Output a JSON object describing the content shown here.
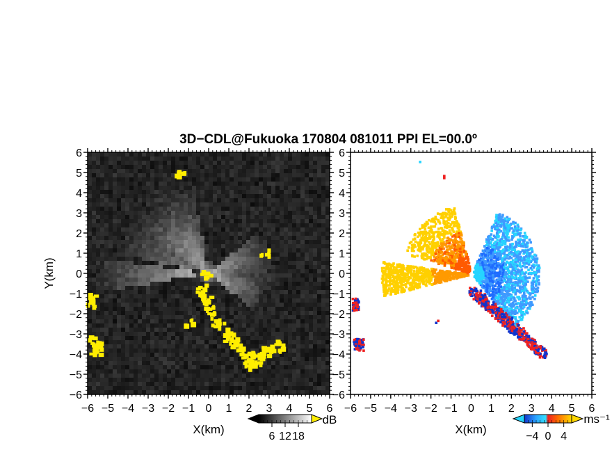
{
  "title": "3D−CDL@Fukuoka 170804 081011 PPI EL=00.0º",
  "colors": {
    "highlight": "#ffee00",
    "background_dark": "#1e1e1e",
    "positive_velocity": [
      "#ffd000",
      "#ff9a00",
      "#ff5a00",
      "#ee2222"
    ],
    "negative_velocity": [
      "#1133cc",
      "#1e6cff",
      "#3f9aff",
      "#26d4ff"
    ]
  },
  "chart_data": [
    {
      "type": "heatmap",
      "panel": "left",
      "quantity": "reflectivity",
      "xlabel": "X(km)",
      "ylabel": "Y(km)",
      "xlim": [
        -6,
        6
      ],
      "ylim": [
        -6,
        6
      ],
      "x_ticks": [
        "−6",
        "−5",
        "−4",
        "−3",
        "−2",
        "−1",
        "0",
        "1",
        "2",
        "3",
        "4",
        "5",
        "6"
      ],
      "y_ticks": [
        "6",
        "5",
        "4",
        "3",
        "2",
        "1",
        "0",
        "−1",
        "−2",
        "−3",
        "−4",
        "−5",
        "−6"
      ],
      "colorbar": {
        "unit": "dB",
        "ticks": [
          "6",
          "12",
          "18"
        ],
        "range": [
          0,
          24
        ]
      },
      "highlight_cells_km": [
        [
          -0.4,
          -0.7
        ],
        [
          -0.3,
          -1.0
        ],
        [
          -0.2,
          -1.3
        ],
        [
          -0.1,
          -1.5
        ],
        [
          0.0,
          -1.8
        ],
        [
          0.2,
          -2.1
        ],
        [
          0.3,
          -2.4
        ],
        [
          0.5,
          -2.6
        ],
        [
          0.7,
          -2.9
        ],
        [
          0.9,
          -3.1
        ],
        [
          1.1,
          -3.3
        ],
        [
          1.3,
          -3.5
        ],
        [
          1.5,
          -3.7
        ],
        [
          1.7,
          -3.9
        ],
        [
          1.8,
          -4.3
        ],
        [
          1.9,
          -4.5
        ],
        [
          2.1,
          -4.0
        ],
        [
          2.4,
          -4.1
        ],
        [
          2.6,
          -3.9
        ],
        [
          2.8,
          -3.8
        ],
        [
          3.0,
          -3.6
        ],
        [
          3.2,
          -3.5
        ],
        [
          3.4,
          -3.6
        ],
        [
          2.3,
          -4.4
        ],
        [
          -5.9,
          -1.2
        ],
        [
          -5.9,
          -1.4
        ],
        [
          -5.8,
          -3.3
        ],
        [
          -5.6,
          -3.5
        ],
        [
          -5.5,
          -3.6
        ],
        [
          -5.7,
          -3.7
        ],
        [
          -1.5,
          5.1
        ],
        [
          -1.0,
          -2.3
        ],
        [
          -0.2,
          0.0
        ],
        [
          2.7,
          1.1
        ]
      ]
    },
    {
      "type": "heatmap",
      "panel": "right",
      "quantity": "Doppler velocity",
      "xlabel": "X(km)",
      "xlim": [
        -6,
        6
      ],
      "ylim": [
        -6,
        6
      ],
      "x_ticks": [
        "−6",
        "−5",
        "−4",
        "−3",
        "−2",
        "−1",
        "0",
        "1",
        "2",
        "3",
        "4",
        "5",
        "6"
      ],
      "y_ticks": [
        "6",
        "5",
        "4",
        "3",
        "2",
        "1",
        "0",
        "−1",
        "−2",
        "−3",
        "−4",
        "−5",
        "−6"
      ],
      "colorbar": {
        "unit": "ms⁻¹",
        "ticks": [
          "−4",
          "0",
          "4"
        ],
        "range": [
          -6,
          6
        ]
      },
      "features": [
        {
          "region": "west sector X=-4.5..0, Y=-1.2..0.4",
          "velocity": 4.5
        },
        {
          "region": "north-west sector X=-2.8..0, Y=0.3..3.2",
          "velocity": 3.5
        },
        {
          "region": "east sector X=0..3.2, Y=-2..2.5",
          "velocity": -3.5
        },
        {
          "region": "south-east band X=0..3.6, Y=-4.5..-1",
          "velocity": "mixed ±6"
        },
        {
          "region": "west edge X=-6..-5.5, Y=-4..-1.2",
          "velocity": "mixed ±6"
        }
      ]
    }
  ]
}
